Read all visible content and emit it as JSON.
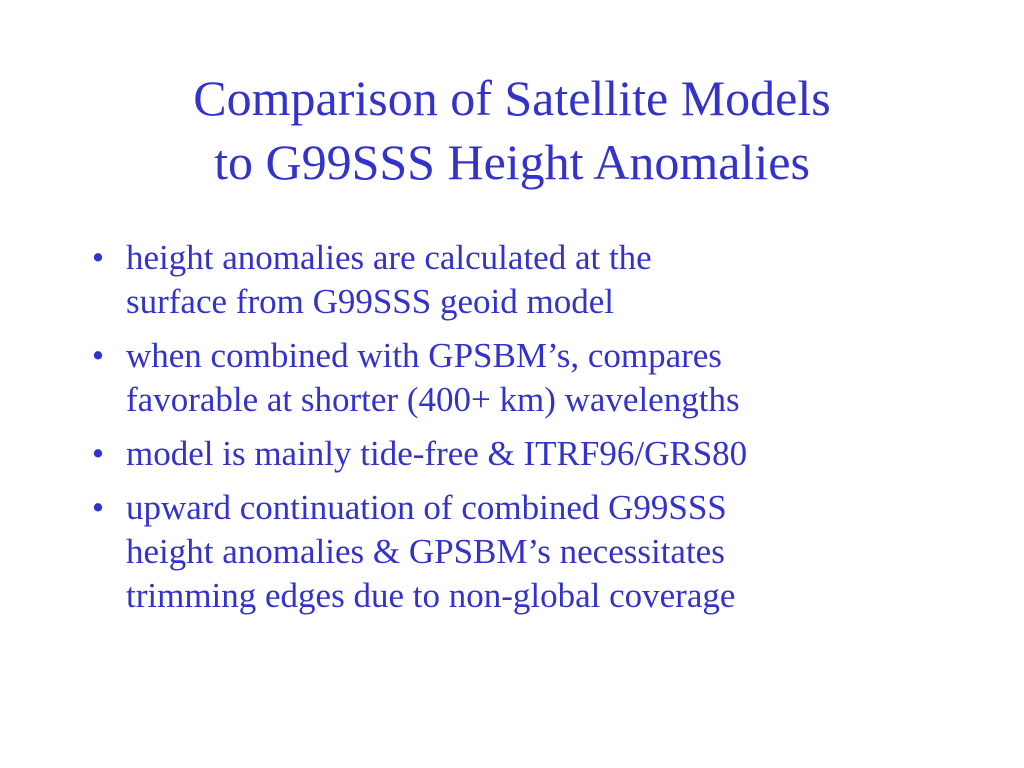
{
  "title": {
    "lines": [
      "Comparison of Satellite Models",
      "to G99SSS Height Anomalies"
    ]
  },
  "bullet_symbol": "•",
  "bullets": [
    {
      "lines": [
        "height anomalies are calculated at the",
        "surface from G99SSS geoid model"
      ]
    },
    {
      "lines": [
        "when combined with GPSBM’s, compares",
        "favorable at shorter (400+ km) wavelengths"
      ]
    },
    {
      "lines": [
        "model is mainly tide-free & ITRF96/GRS80"
      ]
    },
    {
      "lines": [
        "upward continuation of combined G99SSS",
        "height anomalies & GPSBM’s necessitates",
        "trimming edges due to non-global coverage"
      ]
    }
  ],
  "colors": {
    "text": "#3333cc",
    "background": "#ffffff"
  }
}
